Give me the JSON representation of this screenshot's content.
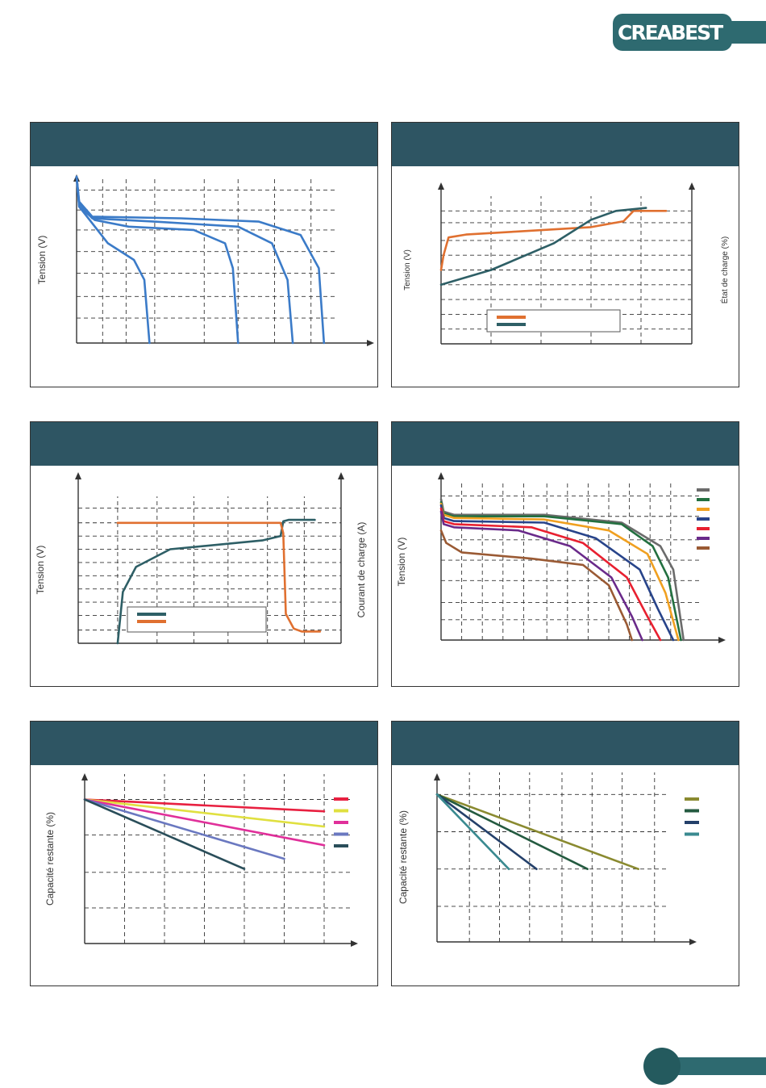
{
  "brand": {
    "logo_text": "CREABEST",
    "color": "#2e6a70"
  },
  "panel_header_color": "#2e5563",
  "chart_data": [
    {
      "type": "line",
      "ylabel": "Tension  (V)",
      "axis_arrows": [
        "x",
        "y"
      ],
      "x_gridlines": [
        0.1,
        0.19,
        0.3,
        0.49,
        0.62,
        0.76,
        0.9
      ],
      "y_gridlines": [
        0.92,
        0.8,
        0.68,
        0.55,
        0.42,
        0.28,
        0.15
      ],
      "xlim": [
        0,
        1
      ],
      "ylim": [
        0,
        1
      ],
      "series": [
        {
          "color": "#3b7bc8",
          "points": [
            [
              0,
              1
            ],
            [
              0.01,
              0.82
            ],
            [
              0.05,
              0.74
            ],
            [
              0.12,
              0.6
            ],
            [
              0.22,
              0.5
            ],
            [
              0.26,
              0.38
            ],
            [
              0.28,
              0.0
            ]
          ]
        },
        {
          "color": "#3b7bc8",
          "points": [
            [
              0,
              1
            ],
            [
              0.01,
              0.82
            ],
            [
              0.07,
              0.74
            ],
            [
              0.2,
              0.7
            ],
            [
              0.45,
              0.68
            ],
            [
              0.57,
              0.6
            ],
            [
              0.6,
              0.45
            ],
            [
              0.62,
              0.0
            ]
          ]
        },
        {
          "color": "#3b7bc8",
          "points": [
            [
              0,
              1
            ],
            [
              0.01,
              0.84
            ],
            [
              0.06,
              0.75
            ],
            [
              0.3,
              0.73
            ],
            [
              0.62,
              0.7
            ],
            [
              0.75,
              0.6
            ],
            [
              0.81,
              0.38
            ],
            [
              0.83,
              0.0
            ]
          ]
        },
        {
          "color": "#3b7bc8",
          "points": [
            [
              0,
              1
            ],
            [
              0.01,
              0.85
            ],
            [
              0.06,
              0.76
            ],
            [
              0.4,
              0.75
            ],
            [
              0.7,
              0.73
            ],
            [
              0.86,
              0.65
            ],
            [
              0.93,
              0.45
            ],
            [
              0.95,
              0.0
            ]
          ]
        }
      ]
    },
    {
      "type": "line",
      "ylabel": "Tension  (V)",
      "y2label": "État de charge (%)",
      "axis_arrows": [
        "y",
        "y2"
      ],
      "x_gridlines": [
        0.2,
        0.4,
        0.6,
        0.8
      ],
      "y_gridlines": [
        0.9,
        0.82,
        0.7,
        0.6,
        0.5,
        0.4,
        0.3,
        0.2,
        0.1
      ],
      "xlim": [
        0,
        1
      ],
      "ylim": [
        0,
        1
      ],
      "legend": {
        "position": "bottom-center",
        "entries": [
          {
            "color": "#e07030"
          },
          {
            "color": "#2e5f66"
          }
        ]
      },
      "series": [
        {
          "color": "#e07030",
          "points": [
            [
              0,
              0.5
            ],
            [
              0.01,
              0.6
            ],
            [
              0.03,
              0.72
            ],
            [
              0.1,
              0.74
            ],
            [
              0.3,
              0.76
            ],
            [
              0.6,
              0.79
            ],
            [
              0.73,
              0.83
            ],
            [
              0.77,
              0.9
            ],
            [
              0.9,
              0.9
            ]
          ]
        },
        {
          "color": "#2e5f66",
          "points": [
            [
              0,
              0.4
            ],
            [
              0.2,
              0.5
            ],
            [
              0.45,
              0.68
            ],
            [
              0.6,
              0.84
            ],
            [
              0.7,
              0.9
            ],
            [
              0.82,
              0.92
            ]
          ]
        }
      ]
    },
    {
      "type": "line",
      "ylabel": "Tension (V)",
      "y2label": "Courant de charge  (A)",
      "axis_arrows": [
        "y",
        "y2"
      ],
      "x_gridlines": [
        0.15,
        0.3,
        0.44,
        0.57,
        0.72,
        0.86
      ],
      "y_gridlines": [
        0.92,
        0.82,
        0.73,
        0.64,
        0.55,
        0.46,
        0.37,
        0.28,
        0.19,
        0.09
      ],
      "xlim": [
        0,
        1
      ],
      "ylim": [
        0,
        1
      ],
      "legend": {
        "position": "bottom-left",
        "entries": [
          {
            "color": "#2e5f66"
          },
          {
            "color": "#e07030"
          }
        ]
      },
      "series": [
        {
          "color": "#2e5f66",
          "points": [
            [
              0.15,
              0.0
            ],
            [
              0.17,
              0.35
            ],
            [
              0.22,
              0.52
            ],
            [
              0.35,
              0.64
            ],
            [
              0.7,
              0.7
            ],
            [
              0.77,
              0.73
            ],
            [
              0.78,
              0.83
            ],
            [
              0.8,
              0.84
            ],
            [
              0.9,
              0.84
            ]
          ]
        },
        {
          "color": "#e07030",
          "points": [
            [
              0.15,
              0.82
            ],
            [
              0.77,
              0.82
            ],
            [
              0.78,
              0.75
            ],
            [
              0.79,
              0.2
            ],
            [
              0.82,
              0.1
            ],
            [
              0.85,
              0.08
            ],
            [
              0.92,
              0.08
            ]
          ]
        }
      ]
    },
    {
      "type": "line",
      "ylabel": "Tension (V)",
      "axis_arrows": [
        "x",
        "y"
      ],
      "x_gridlines": [
        0.08,
        0.16,
        0.24,
        0.32,
        0.41,
        0.49,
        0.57,
        0.65,
        0.73,
        0.81,
        0.89
      ],
      "y_gridlines": [
        0.92,
        0.79,
        0.64,
        0.51,
        0.38,
        0.24,
        0.13
      ],
      "xlim": [
        0,
        1
      ],
      "ylim": [
        0,
        1
      ],
      "legend": {
        "position": "right",
        "entries": [
          {
            "color": "#6b6b6b"
          },
          {
            "color": "#237040"
          },
          {
            "color": "#f0a020"
          },
          {
            "color": "#28448a"
          },
          {
            "color": "#e82030"
          },
          {
            "color": "#6a2a8a"
          },
          {
            "color": "#9a5a34"
          }
        ]
      },
      "series": [
        {
          "color": "#6b6b6b",
          "points": [
            [
              0,
              0.9
            ],
            [
              0.01,
              0.82
            ],
            [
              0.05,
              0.8
            ],
            [
              0.4,
              0.8
            ],
            [
              0.7,
              0.75
            ],
            [
              0.85,
              0.6
            ],
            [
              0.9,
              0.45
            ],
            [
              0.94,
              0.0
            ]
          ]
        },
        {
          "color": "#237040",
          "points": [
            [
              0,
              0.88
            ],
            [
              0.01,
              0.81
            ],
            [
              0.05,
              0.79
            ],
            [
              0.4,
              0.79
            ],
            [
              0.7,
              0.74
            ],
            [
              0.82,
              0.6
            ],
            [
              0.88,
              0.4
            ],
            [
              0.93,
              0.0
            ]
          ]
        },
        {
          "color": "#f0a020",
          "points": [
            [
              0,
              0.87
            ],
            [
              0.01,
              0.8
            ],
            [
              0.05,
              0.78
            ],
            [
              0.4,
              0.77
            ],
            [
              0.65,
              0.7
            ],
            [
              0.8,
              0.55
            ],
            [
              0.87,
              0.3
            ],
            [
              0.92,
              0.0
            ]
          ]
        },
        {
          "color": "#28448a",
          "points": [
            [
              0,
              0.86
            ],
            [
              0.01,
              0.78
            ],
            [
              0.05,
              0.76
            ],
            [
              0.4,
              0.75
            ],
            [
              0.6,
              0.65
            ],
            [
              0.77,
              0.45
            ],
            [
              0.84,
              0.2
            ],
            [
              0.9,
              0.0
            ]
          ]
        },
        {
          "color": "#e82030",
          "points": [
            [
              0,
              0.84
            ],
            [
              0.01,
              0.76
            ],
            [
              0.05,
              0.74
            ],
            [
              0.35,
              0.72
            ],
            [
              0.55,
              0.62
            ],
            [
              0.72,
              0.4
            ],
            [
              0.8,
              0.15
            ],
            [
              0.85,
              0.0
            ]
          ]
        },
        {
          "color": "#6a2a8a",
          "points": [
            [
              0,
              0.82
            ],
            [
              0.01,
              0.74
            ],
            [
              0.05,
              0.72
            ],
            [
              0.3,
              0.7
            ],
            [
              0.5,
              0.6
            ],
            [
              0.66,
              0.4
            ],
            [
              0.74,
              0.15
            ],
            [
              0.78,
              0.0
            ]
          ]
        },
        {
          "color": "#9a5a34",
          "points": [
            [
              0,
              0.7
            ],
            [
              0.02,
              0.62
            ],
            [
              0.08,
              0.56
            ],
            [
              0.35,
              0.52
            ],
            [
              0.55,
              0.48
            ],
            [
              0.65,
              0.35
            ],
            [
              0.72,
              0.1
            ],
            [
              0.74,
              0.0
            ]
          ]
        }
      ]
    },
    {
      "type": "line",
      "ylabel": "Capacité restante (%)",
      "axis_arrows": [
        "x",
        "y"
      ],
      "x_gridlines": [
        0.15,
        0.3,
        0.45,
        0.6,
        0.75,
        0.9
      ],
      "y_gridlines": [
        0.85,
        0.64,
        0.42,
        0.21
      ],
      "xlim": [
        0,
        1
      ],
      "ylim": [
        0,
        1
      ],
      "legend": {
        "position": "right",
        "entries": [
          {
            "color": "#e82040"
          },
          {
            "color": "#e0e040"
          },
          {
            "color": "#e0309a"
          },
          {
            "color": "#6a78c0"
          },
          {
            "color": "#2a4e5a"
          }
        ]
      },
      "series": [
        {
          "color": "#e82040",
          "points": [
            [
              0,
              0.85
            ],
            [
              0.9,
              0.78
            ]
          ]
        },
        {
          "color": "#e0e040",
          "points": [
            [
              0,
              0.85
            ],
            [
              0.9,
              0.69
            ]
          ]
        },
        {
          "color": "#e0309a",
          "points": [
            [
              0,
              0.85
            ],
            [
              0.9,
              0.58
            ]
          ]
        },
        {
          "color": "#6a78c0",
          "points": [
            [
              0,
              0.85
            ],
            [
              0.75,
              0.5
            ]
          ]
        },
        {
          "color": "#2a4e5a",
          "points": [
            [
              0,
              0.85
            ],
            [
              0.6,
              0.44
            ]
          ]
        }
      ]
    },
    {
      "type": "line",
      "ylabel": "Capacité restante  (%)",
      "axis_arrows": [
        "x",
        "y"
      ],
      "x_gridlines": [
        0.14,
        0.27,
        0.4,
        0.54,
        0.67,
        0.8,
        0.94
      ],
      "y_gridlines": [
        0.87,
        0.65,
        0.43,
        0.21
      ],
      "xlim": [
        0,
        1
      ],
      "ylim": [
        0,
        1
      ],
      "legend": {
        "position": "right",
        "entries": [
          {
            "color": "#8a8a30"
          },
          {
            "color": "#245a40"
          },
          {
            "color": "#24406a"
          },
          {
            "color": "#3a8a90"
          }
        ]
      },
      "series": [
        {
          "color": "#8a8a30",
          "points": [
            [
              0,
              0.87
            ],
            [
              0.87,
              0.43
            ]
          ]
        },
        {
          "color": "#245a40",
          "points": [
            [
              0,
              0.87
            ],
            [
              0.65,
              0.43
            ]
          ]
        },
        {
          "color": "#24406a",
          "points": [
            [
              0,
              0.87
            ],
            [
              0.43,
              0.43
            ]
          ]
        },
        {
          "color": "#3a8a90",
          "points": [
            [
              0,
              0.87
            ],
            [
              0.31,
              0.43
            ]
          ]
        }
      ]
    }
  ]
}
